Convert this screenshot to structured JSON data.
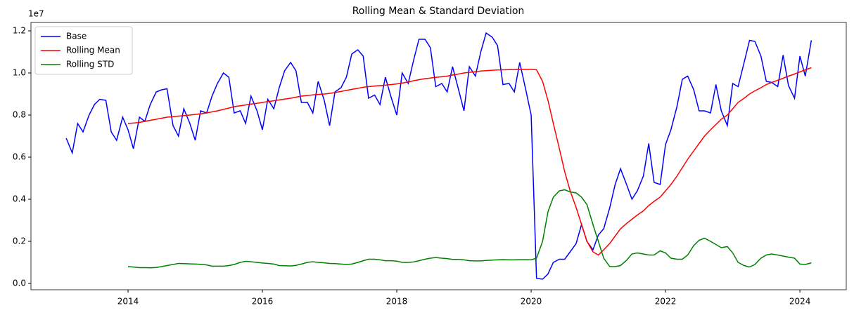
{
  "chart_data": {
    "type": "line",
    "title": "Rolling Mean & Standard Deviation",
    "y_offset_label": "1e7",
    "x": [
      2013.08,
      2013.17,
      2013.25,
      2013.33,
      2013.42,
      2013.5,
      2013.58,
      2013.67,
      2013.75,
      2013.83,
      2013.92,
      2014.0,
      2014.08,
      2014.17,
      2014.25,
      2014.33,
      2014.42,
      2014.5,
      2014.58,
      2014.67,
      2014.75,
      2014.83,
      2014.92,
      2015.0,
      2015.08,
      2015.17,
      2015.25,
      2015.33,
      2015.42,
      2015.5,
      2015.58,
      2015.67,
      2015.75,
      2015.83,
      2015.92,
      2016.0,
      2016.08,
      2016.17,
      2016.25,
      2016.33,
      2016.42,
      2016.5,
      2016.58,
      2016.67,
      2016.75,
      2016.83,
      2016.92,
      2017.0,
      2017.08,
      2017.17,
      2017.25,
      2017.33,
      2017.42,
      2017.5,
      2017.58,
      2017.67,
      2017.75,
      2017.83,
      2017.92,
      2018.0,
      2018.08,
      2018.17,
      2018.25,
      2018.33,
      2018.42,
      2018.5,
      2018.58,
      2018.67,
      2018.75,
      2018.83,
      2018.92,
      2019.0,
      2019.08,
      2019.17,
      2019.25,
      2019.33,
      2019.42,
      2019.5,
      2019.58,
      2019.67,
      2019.75,
      2019.83,
      2019.92,
      2020.0,
      2020.08,
      2020.17,
      2020.25,
      2020.33,
      2020.42,
      2020.5,
      2020.58,
      2020.67,
      2020.75,
      2020.83,
      2020.92,
      2021.0,
      2021.08,
      2021.17,
      2021.25,
      2021.33,
      2021.42,
      2021.5,
      2021.58,
      2021.67,
      2021.75,
      2021.83,
      2021.92,
      2022.0,
      2022.08,
      2022.17,
      2022.25,
      2022.33,
      2022.42,
      2022.5,
      2022.58,
      2022.67,
      2022.75,
      2022.83,
      2022.92,
      2023.0,
      2023.08,
      2023.17,
      2023.25,
      2023.33,
      2023.42,
      2023.5,
      2023.58,
      2023.67,
      2023.75,
      2023.83,
      2023.92,
      2024.0,
      2024.08,
      2024.17
    ],
    "series": [
      {
        "name": "Base",
        "color": "#0000ff",
        "values": [
          0.69,
          0.62,
          0.76,
          0.72,
          0.8,
          0.85,
          0.875,
          0.87,
          0.72,
          0.68,
          0.79,
          0.73,
          0.64,
          0.79,
          0.77,
          0.85,
          0.91,
          0.92,
          0.925,
          0.75,
          0.7,
          0.83,
          0.76,
          0.68,
          0.82,
          0.81,
          0.89,
          0.95,
          1.0,
          0.98,
          0.81,
          0.82,
          0.76,
          0.89,
          0.82,
          0.73,
          0.875,
          0.83,
          0.93,
          1.01,
          1.05,
          1.01,
          0.86,
          0.86,
          0.81,
          0.96,
          0.87,
          0.75,
          0.91,
          0.93,
          0.98,
          1.09,
          1.11,
          1.08,
          0.88,
          0.895,
          0.85,
          0.98,
          0.88,
          0.8,
          1.0,
          0.95,
          1.06,
          1.16,
          1.16,
          1.12,
          0.935,
          0.95,
          0.91,
          1.03,
          0.92,
          0.82,
          1.03,
          0.985,
          1.1,
          1.19,
          1.17,
          1.13,
          0.945,
          0.95,
          0.91,
          1.05,
          0.92,
          0.8,
          0.025,
          0.02,
          0.045,
          0.1,
          0.115,
          0.115,
          0.15,
          0.19,
          0.28,
          0.2,
          0.16,
          0.23,
          0.26,
          0.36,
          0.47,
          0.545,
          0.47,
          0.4,
          0.44,
          0.51,
          0.665,
          0.48,
          0.47,
          0.66,
          0.73,
          0.84,
          0.97,
          0.985,
          0.92,
          0.82,
          0.82,
          0.81,
          0.945,
          0.82,
          0.75,
          0.95,
          0.935,
          1.05,
          1.155,
          1.15,
          1.08,
          0.96,
          0.955,
          0.935,
          1.085,
          0.94,
          0.88,
          1.08,
          0.985,
          1.155
        ]
      },
      {
        "name": "Rolling Mean",
        "color": "#ff0000",
        "values": [
          null,
          null,
          null,
          null,
          null,
          null,
          null,
          null,
          null,
          null,
          null,
          0.76,
          0.762,
          0.765,
          0.77,
          0.775,
          0.78,
          0.785,
          0.79,
          0.792,
          0.795,
          0.797,
          0.8,
          0.803,
          0.806,
          0.81,
          0.815,
          0.82,
          0.827,
          0.833,
          0.84,
          0.844,
          0.848,
          0.852,
          0.856,
          0.86,
          0.864,
          0.868,
          0.872,
          0.876,
          0.88,
          0.885,
          0.89,
          0.893,
          0.896,
          0.898,
          0.9,
          0.903,
          0.907,
          0.912,
          0.917,
          0.922,
          0.927,
          0.932,
          0.935,
          0.938,
          0.94,
          0.942,
          0.945,
          0.948,
          0.952,
          0.957,
          0.963,
          0.968,
          0.973,
          0.976,
          0.979,
          0.982,
          0.985,
          0.99,
          0.995,
          1.0,
          1.003,
          1.006,
          1.009,
          1.011,
          1.013,
          1.014,
          1.015,
          1.016,
          1.016,
          1.017,
          1.017,
          1.017,
          1.015,
          0.96,
          0.87,
          0.76,
          0.64,
          0.53,
          0.44,
          0.36,
          0.28,
          0.2,
          0.15,
          0.135,
          0.16,
          0.19,
          0.225,
          0.26,
          0.285,
          0.305,
          0.325,
          0.345,
          0.37,
          0.39,
          0.41,
          0.44,
          0.47,
          0.51,
          0.55,
          0.59,
          0.63,
          0.665,
          0.7,
          0.73,
          0.755,
          0.78,
          0.8,
          0.83,
          0.86,
          0.88,
          0.9,
          0.915,
          0.93,
          0.945,
          0.955,
          0.965,
          0.975,
          0.985,
          0.995,
          1.005,
          1.015,
          1.025
        ]
      },
      {
        "name": "Rolling STD",
        "color": "#008000",
        "values": [
          null,
          null,
          null,
          null,
          null,
          null,
          null,
          null,
          null,
          null,
          null,
          0.08,
          0.078,
          0.075,
          0.075,
          0.074,
          0.076,
          0.08,
          0.085,
          0.09,
          0.095,
          0.094,
          0.093,
          0.092,
          0.091,
          0.088,
          0.082,
          0.082,
          0.082,
          0.085,
          0.09,
          0.1,
          0.105,
          0.103,
          0.1,
          0.097,
          0.095,
          0.092,
          0.085,
          0.084,
          0.083,
          0.086,
          0.092,
          0.1,
          0.103,
          0.1,
          0.098,
          0.095,
          0.094,
          0.092,
          0.09,
          0.092,
          0.1,
          0.108,
          0.115,
          0.115,
          0.112,
          0.108,
          0.108,
          0.106,
          0.1,
          0.1,
          0.102,
          0.108,
          0.115,
          0.12,
          0.123,
          0.12,
          0.118,
          0.114,
          0.114,
          0.112,
          0.108,
          0.107,
          0.107,
          0.109,
          0.111,
          0.112,
          0.113,
          0.112,
          0.112,
          0.113,
          0.113,
          0.112,
          0.12,
          0.2,
          0.34,
          0.41,
          0.44,
          0.445,
          0.435,
          0.43,
          0.41,
          0.375,
          0.28,
          0.2,
          0.12,
          0.08,
          0.08,
          0.085,
          0.11,
          0.14,
          0.145,
          0.14,
          0.135,
          0.135,
          0.155,
          0.145,
          0.12,
          0.115,
          0.115,
          0.135,
          0.18,
          0.205,
          0.215,
          0.2,
          0.185,
          0.17,
          0.175,
          0.145,
          0.1,
          0.085,
          0.078,
          0.09,
          0.12,
          0.135,
          0.14,
          0.135,
          0.13,
          0.125,
          0.12,
          0.092,
          0.09,
          0.098
        ]
      }
    ],
    "xlim": [
      2012.555,
      2024.69
    ],
    "xticks": [
      2014,
      2016,
      2018,
      2020,
      2022,
      2024
    ],
    "ylim": [
      -0.03,
      1.24
    ],
    "yticks": [
      {
        "value": 0,
        "label": "0.0"
      },
      0.2,
      0.4,
      0.6,
      0.8,
      {
        "value": 1,
        "label": "1.0"
      },
      1.2
    ],
    "legend": "upper left"
  }
}
